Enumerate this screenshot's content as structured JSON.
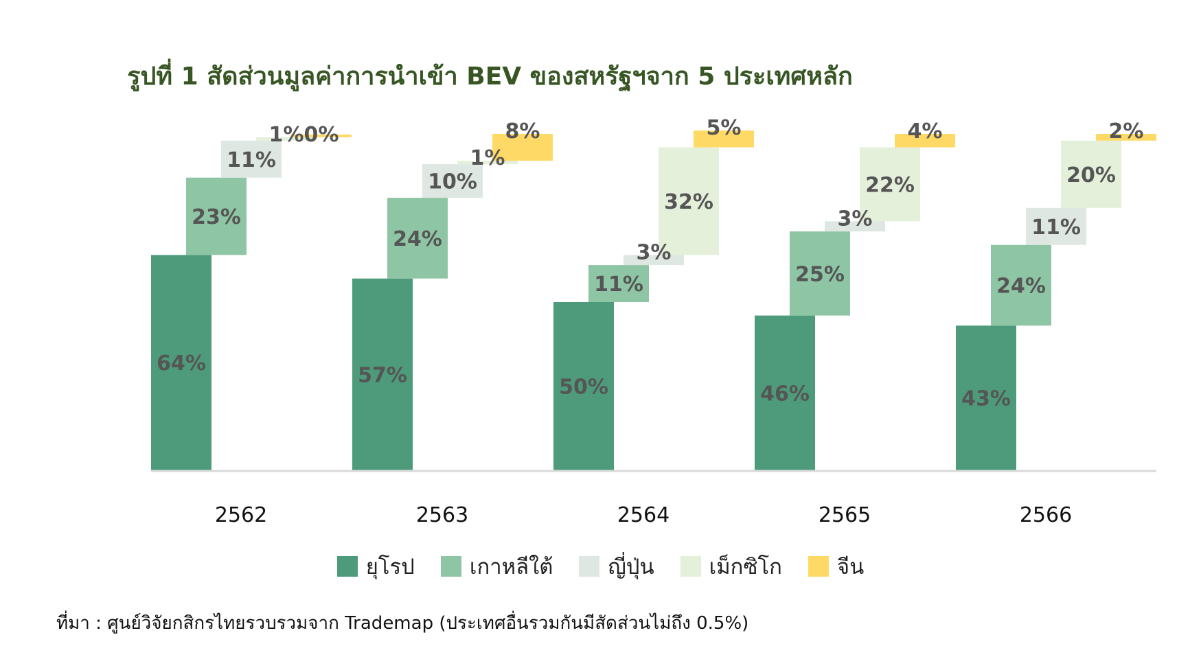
{
  "chart_data": {
    "type": "bar",
    "subtype": "stacked-waterfall",
    "title": "รูปที่ 1 สัดส่วนมูลค่าการนำเข้า BEV ของสหรัฐฯจาก 5 ประเทศหลัก",
    "categories": [
      "2562",
      "2563",
      "2564",
      "2565",
      "2566"
    ],
    "series": [
      {
        "name": "ยุโรป",
        "color": "#4e9b7c",
        "values": [
          64,
          57,
          50,
          46,
          43
        ],
        "labels": [
          "64%",
          "57%",
          "50%",
          "46%",
          "43%"
        ]
      },
      {
        "name": "เกาหลีใต้",
        "color": "#8ec5a4",
        "values": [
          23,
          24,
          11,
          25,
          24
        ],
        "labels": [
          "23%",
          "24%",
          "11%",
          "25%",
          "24%"
        ]
      },
      {
        "name": "ญี่ปุ่น",
        "color": "#dee7e1",
        "values": [
          11,
          10,
          3,
          3,
          11
        ],
        "labels": [
          "11%",
          "10%",
          "3%",
          "3%",
          "11%"
        ]
      },
      {
        "name": "เม็กซิโก",
        "color": "#e4f0da",
        "values": [
          1,
          1,
          32,
          22,
          20
        ],
        "labels": [
          "1%",
          "1%",
          "32%",
          "22%",
          "20%"
        ]
      },
      {
        "name": "จีน",
        "color": "#ffd966",
        "values": [
          0,
          8,
          5,
          4,
          2
        ],
        "labels": [
          "0%",
          "8%",
          "5%",
          "4%",
          "2%"
        ]
      }
    ],
    "ylim": [
      0,
      100
    ],
    "grid": false,
    "legend_position": "bottom"
  },
  "source_note": "ที่มา : ศูนย์วิจัยกสิกรไทยรวบรวมจาก Trademap (ประเทศอื่นรวมกันมีสัดส่วนไม่ถึง 0.5%)"
}
